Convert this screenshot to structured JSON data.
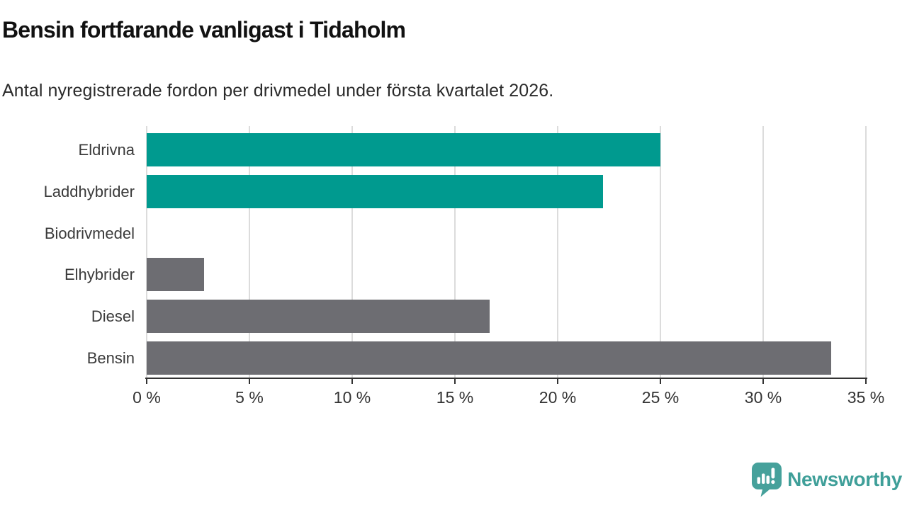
{
  "header": {
    "title": "Bensin fortfarande vanligast i Tidaholm",
    "subtitle": "Antal nyregistrerade fordon per drivmedel under första kvartalet 2026."
  },
  "chart_data": {
    "type": "bar",
    "orientation": "horizontal",
    "title": "Bensin fortfarande vanligast i Tidaholm",
    "subtitle": "Antal nyregistrerade fordon per drivmedel under första kvartalet 2026.",
    "categories": [
      "Eldrivna",
      "Laddhybrider",
      "Biodrivmedel",
      "Elhybrider",
      "Diesel",
      "Bensin"
    ],
    "values": [
      25.0,
      22.2,
      0,
      2.8,
      16.7,
      33.3
    ],
    "unit": "%",
    "bar_colors": [
      "#009a8f",
      "#009a8f",
      "#6d6d72",
      "#6d6d72",
      "#6d6d72",
      "#6d6d72"
    ],
    "xlabel": "",
    "ylabel": "",
    "xlim": [
      0,
      35
    ],
    "x_ticks": [
      0,
      5,
      10,
      15,
      20,
      25,
      30,
      35
    ],
    "x_tick_labels": [
      "0 %",
      "5 %",
      "10 %",
      "15 %",
      "20 %",
      "25 %",
      "30 %",
      "35 %"
    ],
    "grid": "vertical-only",
    "legend": "none"
  },
  "colors": {
    "highlight_bar": "#009a8f",
    "default_bar": "#6d6d72",
    "gridline": "#dcdcdc",
    "axis": "#333333"
  },
  "branding": {
    "logo_text": "Newsworthy",
    "logo_icon": "speech-bubble-bar-chart-icon",
    "logo_color": "#46a19b"
  }
}
